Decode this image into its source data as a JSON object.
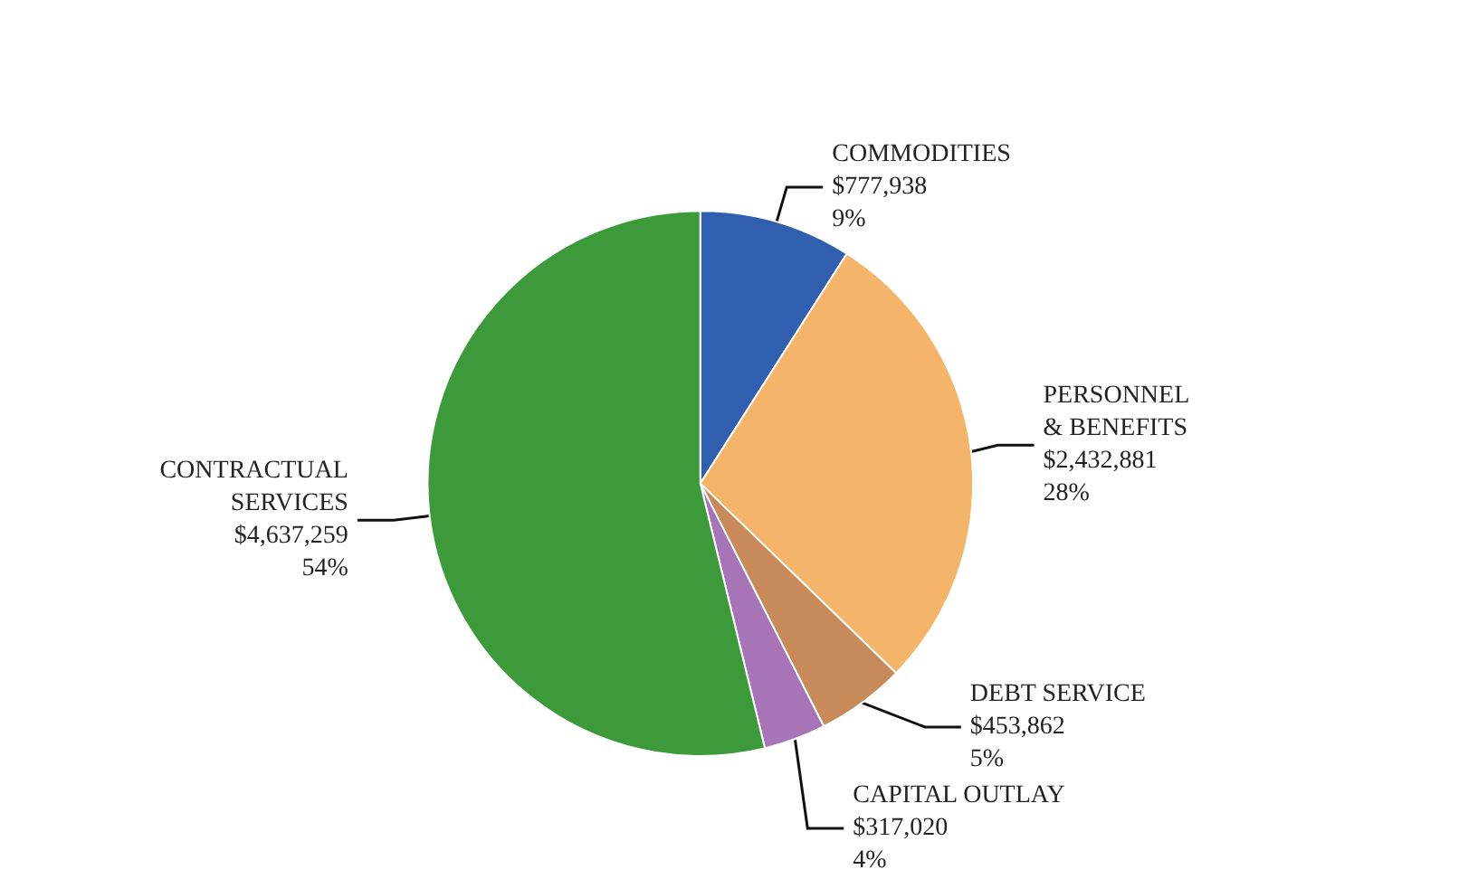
{
  "chart_data": {
    "type": "pie",
    "categories": [
      "COMMODITIES",
      "PERSONNEL\n& BENEFITS",
      "DEBT SERVICE",
      "CAPITAL OUTLAY",
      "CONTRACTUAL\nSERVICES"
    ],
    "values": [
      777938,
      2432881,
      453862,
      317020,
      4637259
    ],
    "value_labels": [
      "$777,938\n9%",
      "$2,432,881\n28%",
      "$453,862\n5%",
      "$317,020\n4%",
      "$4,637,259\n54%"
    ],
    "colors": [
      "#2f5fae",
      "#f4b469",
      "#c98a5a",
      "#a774b8",
      "#3d9a3a"
    ],
    "legend": false
  }
}
